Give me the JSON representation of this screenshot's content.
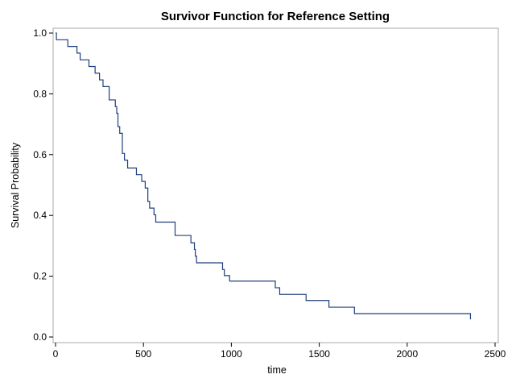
{
  "chart_data": {
    "type": "line",
    "step": true,
    "title": "Survivor Function for Reference Setting",
    "xlabel": "time",
    "ylabel": "Survival Probability",
    "xlim": [
      0,
      2500
    ],
    "ylim": [
      0,
      1
    ],
    "x_ticks": [
      0,
      500,
      1000,
      1500,
      2000,
      2500
    ],
    "y_ticks": [
      0.0,
      0.2,
      0.4,
      0.6,
      0.8,
      1.0
    ],
    "x_tick_labels": [
      "0",
      "500",
      "1000",
      "1500",
      "2000",
      "2500"
    ],
    "y_tick_labels": [
      "0.0",
      "0.2",
      "0.4",
      "0.6",
      "0.8",
      "1.0"
    ],
    "grid": false,
    "line_color": "#1f3f7f",
    "series": [
      {
        "x": [
          0,
          5,
          70,
          122,
          140,
          190,
          225,
          250,
          270,
          305,
          340,
          348,
          355,
          365,
          380,
          392,
          410,
          460,
          490,
          510,
          525,
          535,
          560,
          570,
          680,
          770,
          790,
          795,
          802,
          950,
          960,
          990,
          1250,
          1275,
          1425,
          1555,
          1700,
          2360
        ],
        "y": [
          1.0,
          0.978,
          0.956,
          0.934,
          0.912,
          0.89,
          0.868,
          0.846,
          0.824,
          0.78,
          0.758,
          0.736,
          0.692,
          0.67,
          0.604,
          0.582,
          0.556,
          0.534,
          0.512,
          0.49,
          0.446,
          0.424,
          0.402,
          0.378,
          0.334,
          0.31,
          0.288,
          0.266,
          0.244,
          0.222,
          0.202,
          0.184,
          0.162,
          0.14,
          0.12,
          0.098,
          0.077,
          0.058
        ]
      }
    ]
  }
}
